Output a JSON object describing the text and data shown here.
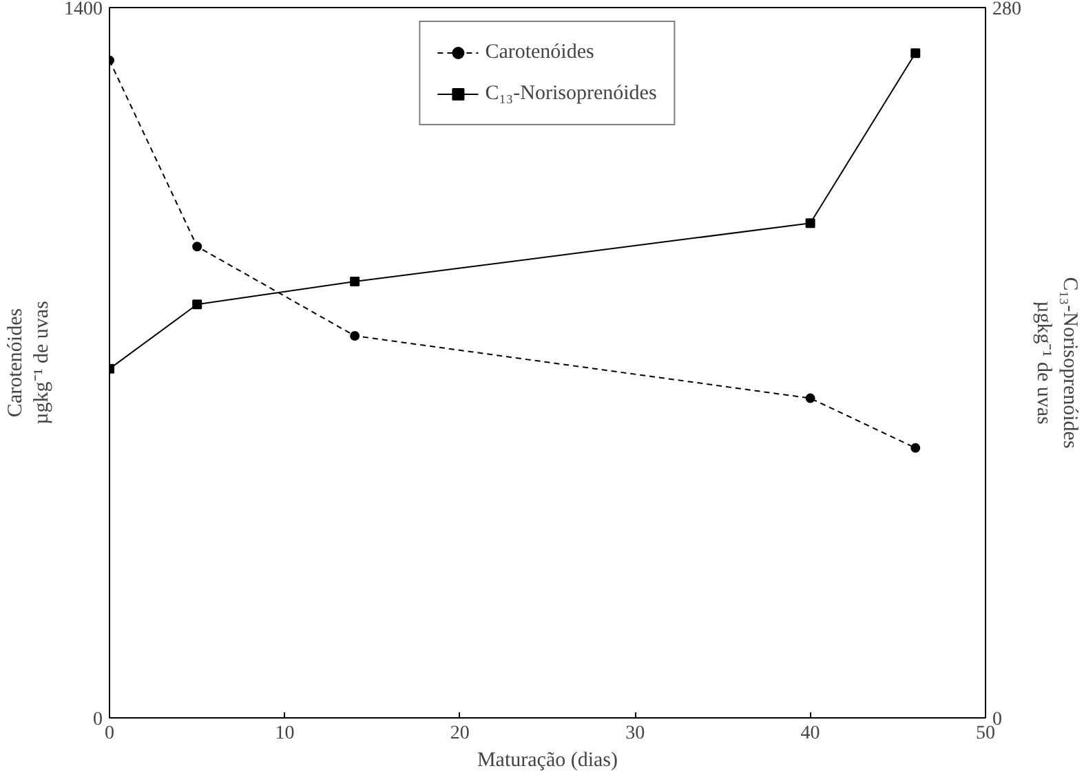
{
  "chart_data": {
    "type": "line",
    "xlabel": "Maturação (dias)",
    "ylabel": "Carotenóides\nµgkg⁻¹ de uvas",
    "y2label": "C₁₃-Norisoprenóides\nµgkg⁻¹ de uvas",
    "x": [
      0,
      5,
      14,
      40,
      46
    ],
    "series": [
      {
        "name": "Carotenóides",
        "color": "#000000",
        "marker": "circle",
        "line_style": "dashed",
        "values": [
          1296,
          929,
          753,
          630,
          532
        ]
      },
      {
        "name": "C₁₃-Norisoprenóides",
        "color": "#000000",
        "marker": "square",
        "line_style": "solid",
        "axis": "y2",
        "values": [
          137.6,
          163,
          172,
          195,
          262
        ]
      }
    ],
    "xlim": [
      0,
      50
    ],
    "xticks": [
      0,
      10,
      20,
      30,
      40,
      50
    ],
    "ylim": [
      0,
      1400
    ],
    "yticks": [
      0,
      1400
    ],
    "y2lim": [
      0,
      280
    ],
    "y2ticks": [
      0,
      280
    ],
    "grid": false,
    "legend": "top"
  }
}
